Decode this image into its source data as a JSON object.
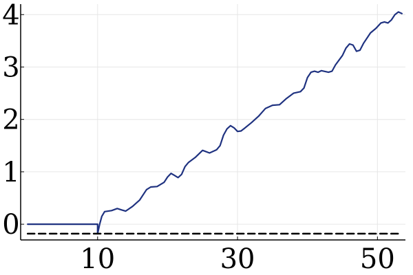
{
  "chart_data": {
    "type": "line",
    "title": "",
    "xlabel": "",
    "ylabel": "",
    "xlim": [
      -1,
      51
    ],
    "ylim": [
      -0.3,
      4.2
    ],
    "x_ticks": [
      10,
      30,
      50
    ],
    "x_tick_labels": [
      "10",
      "30",
      "50"
    ],
    "y_ticks": [
      0,
      1,
      2,
      3,
      4
    ],
    "y_tick_labels": [
      "0",
      "1",
      "2",
      "3",
      "4"
    ],
    "grid": true,
    "legend": "none",
    "series": [
      {
        "style": "solid",
        "color": "#1f3280",
        "points": [
          [
            0,
            0
          ],
          [
            10,
            0
          ],
          [
            10,
            -0.18
          ],
          [
            10.3,
            0.0
          ],
          [
            10.6,
            0.15
          ],
          [
            11,
            0.24
          ],
          [
            12,
            0.26
          ],
          [
            12.8,
            0.3
          ],
          [
            13.5,
            0.27
          ],
          [
            14,
            0.25
          ],
          [
            15,
            0.34
          ],
          [
            16,
            0.46
          ],
          [
            17,
            0.66
          ],
          [
            17.6,
            0.71
          ],
          [
            18.5,
            0.72
          ],
          [
            19.5,
            0.8
          ],
          [
            20,
            0.9
          ],
          [
            20.5,
            0.97
          ],
          [
            21,
            0.93
          ],
          [
            21.5,
            0.89
          ],
          [
            22,
            0.95
          ],
          [
            22.5,
            1.1
          ],
          [
            23,
            1.18
          ],
          [
            24,
            1.28
          ],
          [
            25,
            1.41
          ],
          [
            26,
            1.36
          ],
          [
            27,
            1.42
          ],
          [
            27.5,
            1.5
          ],
          [
            28,
            1.7
          ],
          [
            28.5,
            1.82
          ],
          [
            29,
            1.88
          ],
          [
            29.5,
            1.84
          ],
          [
            30,
            1.77
          ],
          [
            30.5,
            1.78
          ],
          [
            31,
            1.83
          ],
          [
            32,
            1.94
          ],
          [
            33,
            2.06
          ],
          [
            34,
            2.21
          ],
          [
            35,
            2.27
          ],
          [
            36,
            2.28
          ],
          [
            37,
            2.4
          ],
          [
            38,
            2.5
          ],
          [
            39,
            2.53
          ],
          [
            39.5,
            2.6
          ],
          [
            40,
            2.8
          ],
          [
            40.5,
            2.9
          ],
          [
            41,
            2.92
          ],
          [
            41.5,
            2.9
          ],
          [
            42,
            2.93
          ],
          [
            43,
            2.9
          ],
          [
            43.5,
            2.92
          ],
          [
            44,
            3.04
          ],
          [
            45,
            3.22
          ],
          [
            45.5,
            3.36
          ],
          [
            46,
            3.44
          ],
          [
            46.5,
            3.42
          ],
          [
            47,
            3.3
          ],
          [
            47.5,
            3.32
          ],
          [
            48,
            3.45
          ],
          [
            49,
            3.65
          ],
          [
            49.8,
            3.74
          ],
          [
            50.5,
            3.84
          ],
          [
            51,
            3.86
          ],
          [
            51.5,
            3.84
          ],
          [
            52,
            3.9
          ],
          [
            52.5,
            4.0
          ],
          [
            53,
            4.05
          ],
          [
            53.5,
            4.02
          ]
        ]
      },
      {
        "style": "dashed",
        "color": "#000000",
        "points": [
          [
            0,
            -0.18
          ],
          [
            53.5,
            -0.18
          ]
        ]
      }
    ]
  }
}
